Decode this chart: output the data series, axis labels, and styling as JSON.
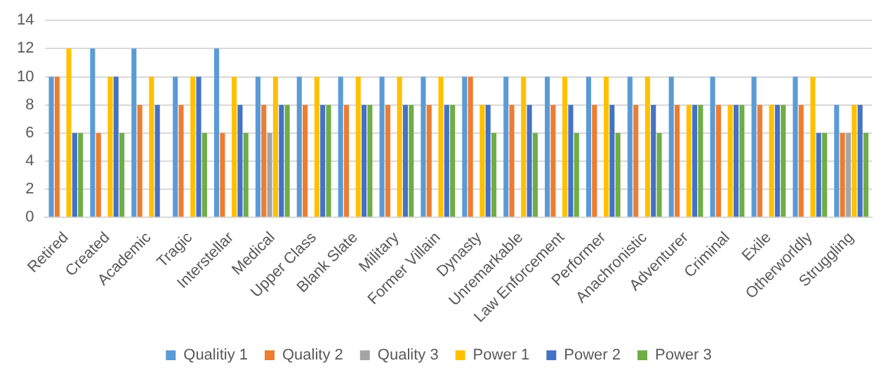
{
  "chart_data": {
    "type": "bar",
    "categories": [
      "Retired",
      "Created",
      "Academic",
      "Tragic",
      "Interstellar",
      "Medical",
      "Upper Class",
      "Blank Slate",
      "Military",
      "Former Villain",
      "Dynasty",
      "Unremarkable",
      "Law Enforcement",
      "Performer",
      "Anachronistic",
      "Adventurer",
      "Criminal",
      "Exile",
      "Otherworldly",
      "Struggling"
    ],
    "series": [
      {
        "name": "Qualitiy 1",
        "color": "#5b9bd5",
        "values": [
          10,
          12,
          12,
          10,
          12,
          10,
          10,
          10,
          10,
          10,
          10,
          10,
          10,
          10,
          10,
          10,
          10,
          10,
          10,
          8
        ]
      },
      {
        "name": "Quality 2",
        "color": "#ed7d31",
        "values": [
          10,
          6,
          8,
          8,
          6,
          8,
          8,
          8,
          8,
          8,
          10,
          8,
          8,
          8,
          8,
          8,
          8,
          8,
          8,
          6
        ]
      },
      {
        "name": "Quality 3",
        "color": "#a5a5a5",
        "values": [
          0,
          0,
          0,
          0,
          0,
          6,
          0,
          0,
          0,
          0,
          0,
          0,
          0,
          0,
          0,
          0,
          0,
          0,
          0,
          6
        ]
      },
      {
        "name": "Power 1",
        "color": "#ffc000",
        "values": [
          12,
          10,
          10,
          10,
          10,
          10,
          10,
          10,
          10,
          10,
          8,
          10,
          10,
          10,
          10,
          8,
          8,
          8,
          10,
          8
        ]
      },
      {
        "name": "Power 2",
        "color": "#4472c4",
        "values": [
          6,
          10,
          8,
          10,
          8,
          8,
          8,
          8,
          8,
          8,
          8,
          8,
          8,
          8,
          8,
          8,
          8,
          8,
          6,
          8
        ]
      },
      {
        "name": "Power 3",
        "color": "#70ad47",
        "values": [
          6,
          6,
          0,
          6,
          6,
          8,
          8,
          8,
          8,
          8,
          6,
          6,
          6,
          6,
          6,
          8,
          8,
          8,
          6,
          6
        ]
      }
    ],
    "ylim": [
      0,
      14
    ],
    "yticks": [
      0,
      2,
      4,
      6,
      8,
      10,
      12,
      14
    ],
    "grid": "y",
    "legend": "bottom"
  }
}
